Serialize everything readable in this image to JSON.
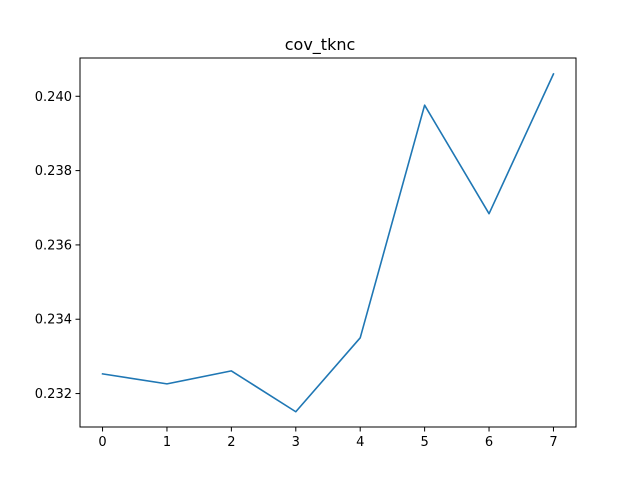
{
  "chart_data": {
    "type": "line",
    "title": "cov_tknc",
    "xlabel": "",
    "ylabel": "",
    "x": [
      0,
      1,
      2,
      3,
      4,
      5,
      6,
      7
    ],
    "series": [
      {
        "values": [
          0.23253,
          0.23226,
          0.23261,
          0.23151,
          0.2335,
          0.23976,
          0.23684,
          0.2406
        ],
        "color": "#1f77b4"
      }
    ],
    "xlim": [
      -0.35,
      7.35
    ],
    "ylim": [
      0.2311,
      0.24103
    ],
    "x_ticks": [
      0,
      1,
      2,
      3,
      4,
      5,
      6,
      7
    ],
    "x_tick_labels": [
      "0",
      "1",
      "2",
      "3",
      "4",
      "5",
      "6",
      "7"
    ],
    "y_ticks": [
      0.232,
      0.234,
      0.236,
      0.238,
      0.24
    ],
    "y_tick_labels": [
      "0.232",
      "0.234",
      "0.236",
      "0.238",
      "0.240"
    ],
    "grid": false,
    "legend": "none"
  }
}
